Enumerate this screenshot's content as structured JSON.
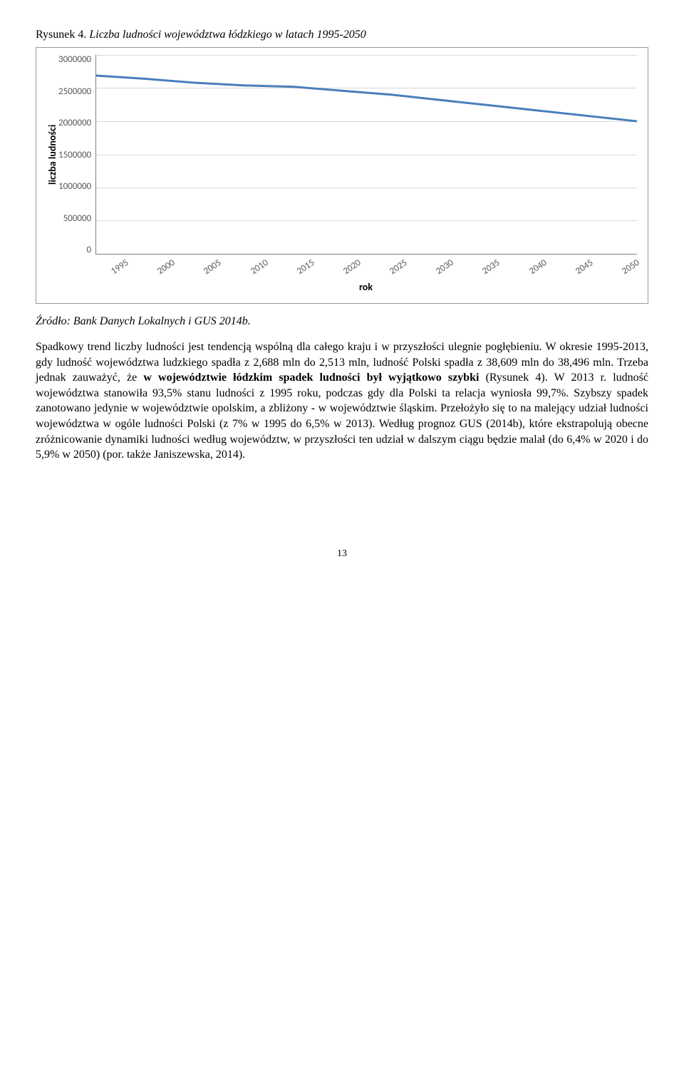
{
  "figure": {
    "label": "Rysunek 4.",
    "title": "Liczba ludności województwa łódzkiego w latach 1995-2050",
    "chart": {
      "type": "line",
      "x_label": "rok",
      "y_label": "liczba ludności",
      "y_ticks": [
        "3000000",
        "2500000",
        "2000000",
        "1500000",
        "1000000",
        "500000",
        "0"
      ],
      "x_ticks": [
        "1995",
        "2000",
        "2005",
        "2010",
        "2015",
        "2020",
        "2025",
        "2030",
        "2035",
        "2040",
        "2045",
        "2050"
      ],
      "ylim": [
        0,
        3000000
      ],
      "series": {
        "values": [
          2688000,
          2640000,
          2580000,
          2540000,
          2520000,
          2460000,
          2400000,
          2320000,
          2240000,
          2160000,
          2080000,
          2000000
        ],
        "line_color": "#4a7ebb",
        "line_width": 3
      },
      "grid_color": "#d9d9d9",
      "axis_color": "#808080",
      "tick_color": "#595959",
      "background_color": "#ffffff",
      "border_color": "#999999",
      "font_family": "Calibri, Arial, sans-serif",
      "tick_fontsize": 13,
      "label_fontsize": 14
    }
  },
  "source": "Źródło: Bank Danych Lokalnych i GUS 2014b.",
  "body": {
    "p1_a": "Spadkowy trend liczby ludności jest tendencją wspólną dla całego kraju i w przyszłości ulegnie pogłębieniu. W okresie 1995-2013, gdy ludność województwa ludzkiego spadła z 2,688 mln do 2,513 mln, ludność Polski spadła z 38,609 mln do 38,496 mln. Trzeba jednak zauważyć, że ",
    "p1_bold": "w województwie łódzkim spadek ludności był wyjątkowo szybki",
    "p1_b": " (Rysunek 4). W 2013 r. ludność województwa stanowiła 93,5% stanu ludności z 1995 roku, podczas gdy dla Polski ta relacja wyniosła 99,7%. Szybszy spadek zanotowano jedynie w województwie opolskim, a zbliżony - w województwie śląskim. Przełożyło się to na malejący udział ludności województwa w ogóle ludności Polski (z 7% w 1995 do 6,5% w 2013). Według prognoz GUS (2014b), które ekstrapolują obecne zróżnicowanie dynamiki ludności według województw, w przyszłości ten udział w dalszym ciągu będzie malał (do  6,4% w 2020 i do 5,9% w 2050) (por. także Janiszewska, 2014)."
  },
  "page_number": "13"
}
